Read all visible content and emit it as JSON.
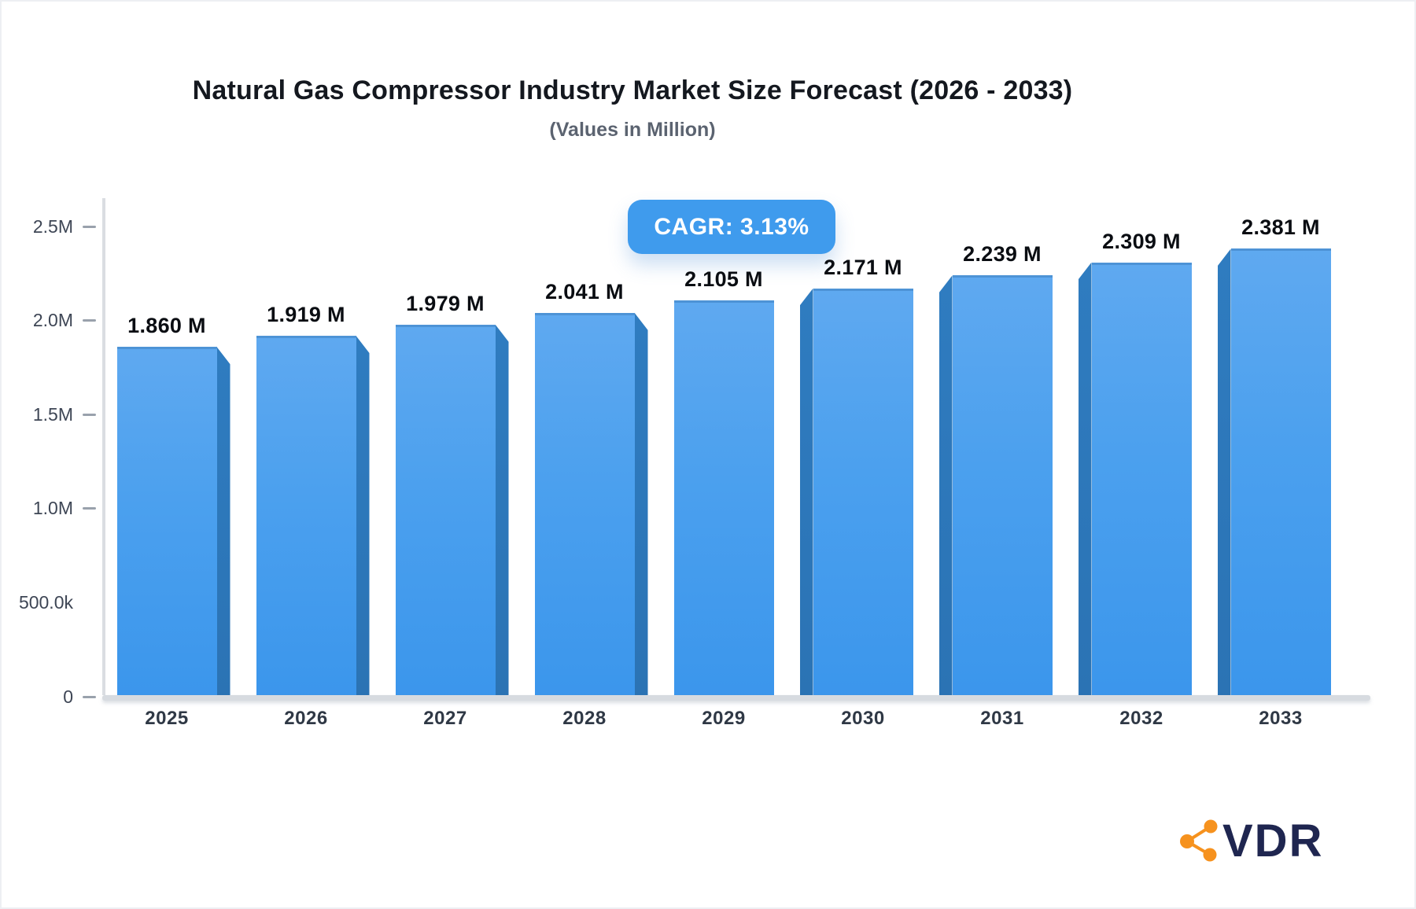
{
  "header": {
    "title": "Natural Gas Compressor Industry Market Size Forecast (2026 - 2033)",
    "subtitle": "(Values in Million)"
  },
  "badge": {
    "label": "CAGR: 3.13%",
    "bg_color": "#3F9BED",
    "text_color": "#FFFFFF"
  },
  "logo": {
    "text": "VDR",
    "icon": "share-network-icon",
    "icon_color": "#F6921E",
    "text_color": "#1F2650"
  },
  "colors": {
    "bar_front_top": "#5FA9F0",
    "bar_front_bottom": "#3B96EC",
    "bar_side": "#2E7ABC",
    "axis_line": "#DADDE2",
    "baseline": "#D7DBE0",
    "tick_text": "#3E4655",
    "x_tick_text": "#2F3845"
  },
  "chart_data": {
    "type": "bar",
    "title": "Natural Gas Compressor Industry Market Size Forecast (2026 - 2033)",
    "subtitle": "(Values in Million)",
    "cagr": "3.13%",
    "categories": [
      "2025",
      "2026",
      "2027",
      "2028",
      "2029",
      "2030",
      "2031",
      "2032",
      "2033"
    ],
    "values": [
      1860000,
      1919000,
      1979000,
      2041000,
      2105000,
      2171000,
      2239000,
      2309000,
      2381000
    ],
    "value_labels": [
      "1.860 M",
      "1.919 M",
      "1.979 M",
      "2.041 M",
      "2.105 M",
      "2.171 M",
      "2.239 M",
      "2.309 M",
      "2.381 M"
    ],
    "xlabel": "",
    "ylabel": "",
    "ylim": [
      0,
      2500000
    ],
    "grid": false,
    "legend": "none",
    "y_ticks": [
      {
        "label": "0",
        "value": 0,
        "dash": true
      },
      {
        "label": "500.0k",
        "value": 500000,
        "dash": false
      },
      {
        "label": "1.0M",
        "value": 1000000,
        "dash": true
      },
      {
        "label": "1.5M",
        "value": 1500000,
        "dash": true
      },
      {
        "label": "2.0M",
        "value": 2000000,
        "dash": true
      },
      {
        "label": "2.5M",
        "value": 2500000,
        "dash": true
      }
    ]
  }
}
